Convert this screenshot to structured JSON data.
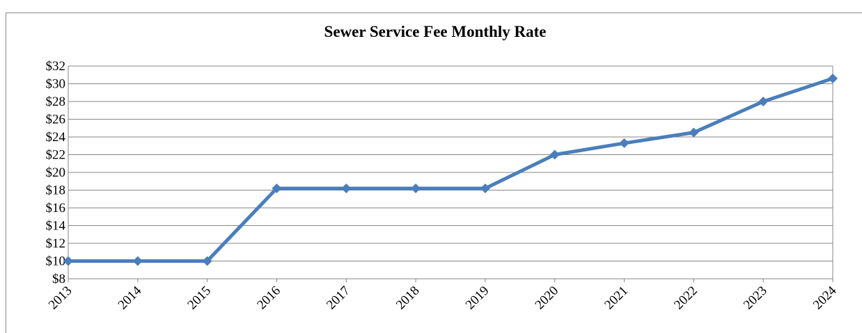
{
  "chart_data": {
    "type": "line",
    "title": "Sewer Service Fee Monthly Rate",
    "categories": [
      "2013",
      "2014",
      "2015",
      "2016",
      "2017",
      "2018",
      "2019",
      "2020",
      "2021",
      "2022",
      "2023",
      "2024"
    ],
    "series": [
      {
        "name": "Sewer Service Fee Monthly Rate",
        "color": "#4a7ebb",
        "values": [
          10,
          10,
          10,
          18.2,
          18.2,
          18.2,
          18.2,
          22,
          23.3,
          24.5,
          28,
          30.6
        ]
      }
    ],
    "ylim": [
      8,
      32
    ],
    "yticks": [
      {
        "value": 8,
        "label": "$8"
      },
      {
        "value": 10,
        "label": "$10"
      },
      {
        "value": 12,
        "label": "$12"
      },
      {
        "value": 14,
        "label": "$14"
      },
      {
        "value": 16,
        "label": "$16"
      },
      {
        "value": 18,
        "label": "$18"
      },
      {
        "value": 20,
        "label": "$20"
      },
      {
        "value": 22,
        "label": "$22"
      },
      {
        "value": 24,
        "label": "$24"
      },
      {
        "value": 26,
        "label": "$26"
      },
      {
        "value": 28,
        "label": "$28"
      },
      {
        "value": 30,
        "label": "$30"
      },
      {
        "value": 32,
        "label": "$32"
      }
    ],
    "grid": true
  }
}
